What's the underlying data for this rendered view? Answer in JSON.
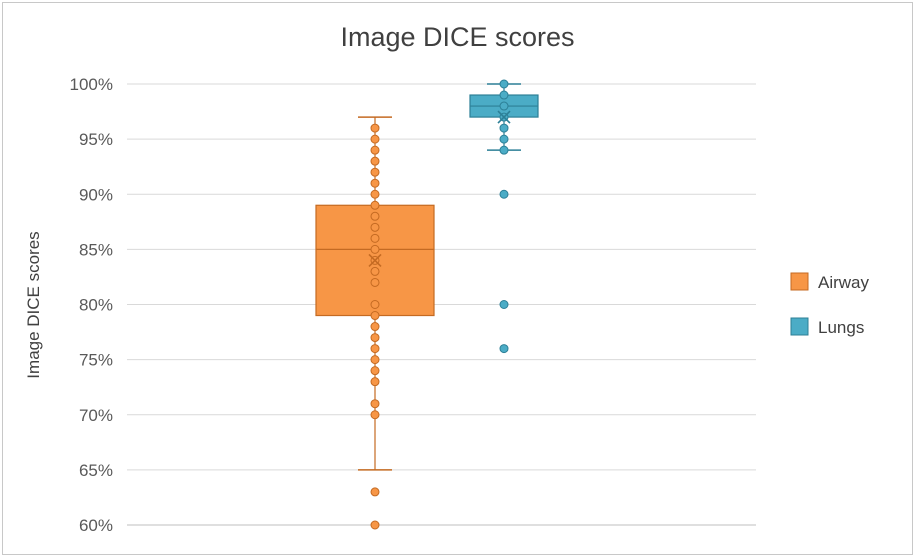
{
  "chart_data": {
    "type": "boxplot",
    "title": "Image DICE scores",
    "xlabel": "",
    "ylabel": "Image DICE scores",
    "ylim": [
      60,
      100
    ],
    "ytick_step": 5,
    "ytick_suffix": "%",
    "grid": true,
    "legend_position": "right",
    "series": [
      {
        "name": "Airway",
        "color": "#f79646",
        "stroke": "#c46a22",
        "whisker_low": 65,
        "q1": 79,
        "median": 85,
        "q3": 89,
        "whisker_high": 97,
        "mean": 84,
        "points": [
          96,
          95,
          94,
          93,
          92,
          91,
          90,
          89,
          88,
          87,
          86,
          85,
          84,
          83,
          82,
          80,
          79,
          78,
          77,
          76,
          75,
          74,
          73,
          71,
          70,
          63,
          60
        ]
      },
      {
        "name": "Lungs",
        "color": "#4bacc6",
        "stroke": "#2c7f96",
        "whisker_low": 94,
        "q1": 97,
        "median": 98,
        "q3": 99,
        "whisker_high": 100,
        "mean": 97,
        "points": [
          100,
          99,
          98,
          97,
          96,
          95,
          94,
          90,
          80,
          76
        ]
      }
    ]
  }
}
